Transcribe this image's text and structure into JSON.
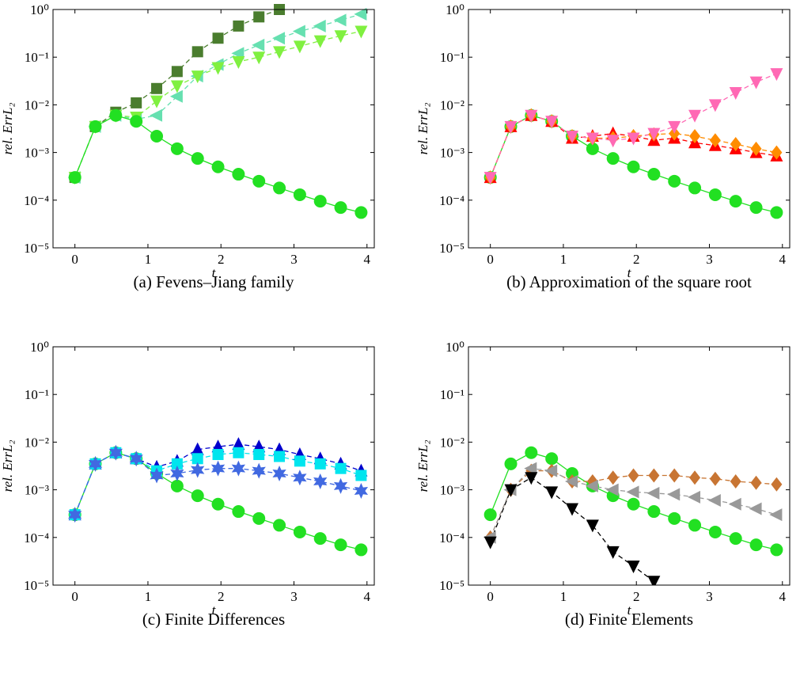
{
  "chart_data": [
    {
      "type": "line",
      "caption": "(a) Fevens–Jiang family",
      "xlabel": "t",
      "ylabel": "rel. ErrL₂",
      "log_y": true,
      "xlim": [
        -0.3,
        4.1
      ],
      "ylim": [
        1e-05,
        1
      ],
      "xticks": [
        0,
        1,
        2,
        3,
        4
      ],
      "yticks": [
        {
          "value": 1e-05,
          "label": "10⁻⁵"
        },
        {
          "value": 0.0001,
          "label": "10⁻⁴"
        },
        {
          "value": 0.001,
          "label": "10⁻³"
        },
        {
          "value": 0.01,
          "label": "10⁻²"
        },
        {
          "value": 0.1,
          "label": "10⁻¹"
        },
        {
          "value": 1,
          "label": "10⁰"
        }
      ],
      "x": [
        0,
        0.28,
        0.56,
        0.84,
        1.12,
        1.4,
        1.68,
        1.96,
        2.24,
        2.52,
        2.8,
        3.08,
        3.36,
        3.64,
        3.92
      ],
      "series": [
        {
          "color": "#4a7d2e",
          "marker": "square",
          "linestyle": "dashed",
          "values": [
            0.0003,
            0.0035,
            0.007,
            0.011,
            0.022,
            0.05,
            0.13,
            0.25,
            0.45,
            0.7,
            1.0,
            null,
            null,
            null,
            null
          ]
        },
        {
          "color": "#66e0b0",
          "marker": "left",
          "linestyle": "dashed",
          "values": [
            0.0003,
            0.0035,
            0.006,
            0.005,
            0.006,
            0.015,
            0.04,
            0.07,
            0.12,
            0.18,
            0.25,
            0.35,
            0.45,
            0.6,
            0.8
          ]
        },
        {
          "color": "#80f040",
          "marker": "down",
          "linestyle": "dashed",
          "values": [
            0.0003,
            0.0035,
            0.006,
            0.0055,
            0.012,
            0.025,
            0.04,
            0.06,
            0.08,
            0.1,
            0.13,
            0.17,
            0.22,
            0.28,
            0.35
          ]
        },
        {
          "color": "#22e022",
          "marker": "circle",
          "linestyle": "solid",
          "values": [
            0.0003,
            0.0035,
            0.006,
            0.0045,
            0.0022,
            0.0012,
            0.00075,
            0.0005,
            0.00035,
            0.00025,
            0.00018,
            0.00013,
            9.5e-05,
            7e-05,
            5.5e-05
          ]
        }
      ]
    },
    {
      "type": "line",
      "caption": "(b) Approximation of the square root",
      "xlabel": "t",
      "ylabel": "rel. ErrL₂",
      "log_y": true,
      "xlim": [
        -0.3,
        4.1
      ],
      "ylim": [
        1e-05,
        1
      ],
      "xticks": [
        0,
        1,
        2,
        3,
        4
      ],
      "yticks": [
        {
          "value": 1e-05,
          "label": "10⁻⁵"
        },
        {
          "value": 0.0001,
          "label": "10⁻⁴"
        },
        {
          "value": 0.001,
          "label": "10⁻³"
        },
        {
          "value": 0.01,
          "label": "10⁻²"
        },
        {
          "value": 0.1,
          "label": "10⁻¹"
        },
        {
          "value": 1,
          "label": "10⁰"
        }
      ],
      "x": [
        0,
        0.28,
        0.56,
        0.84,
        1.12,
        1.4,
        1.68,
        1.96,
        2.24,
        2.52,
        2.8,
        3.08,
        3.36,
        3.64,
        3.92
      ],
      "series": [
        {
          "color": "#22e022",
          "marker": "circle",
          "linestyle": "solid",
          "values": [
            0.0003,
            0.0035,
            0.006,
            0.0045,
            0.0022,
            0.0012,
            0.00075,
            0.0005,
            0.00035,
            0.00025,
            0.00018,
            0.00013,
            9.5e-05,
            7e-05,
            5.5e-05
          ]
        },
        {
          "color": "#ff0000",
          "marker": "up",
          "linestyle": "dashed",
          "values": [
            0.0003,
            0.0035,
            0.006,
            0.0045,
            0.002,
            0.0022,
            0.0025,
            0.0022,
            0.0018,
            0.002,
            0.0016,
            0.0014,
            0.0012,
            0.001,
            0.00085
          ]
        },
        {
          "color": "#ff8c00",
          "marker": "diamond",
          "linestyle": "dashed",
          "values": [
            0.0003,
            0.0035,
            0.006,
            0.0045,
            0.0022,
            0.002,
            0.002,
            0.0022,
            0.0024,
            0.0025,
            0.0022,
            0.0018,
            0.0015,
            0.0012,
            0.001
          ]
        },
        {
          "color": "#ff69b4",
          "marker": "down",
          "linestyle": "dashed",
          "values": [
            0.0003,
            0.0035,
            0.006,
            0.0045,
            0.0022,
            0.002,
            0.0018,
            0.002,
            0.0025,
            0.0035,
            0.006,
            0.01,
            0.018,
            0.03,
            0.045
          ]
        }
      ]
    },
    {
      "type": "line",
      "caption": "(c) Finite Differences",
      "xlabel": "t",
      "ylabel": "rel. ErrL₂",
      "log_y": true,
      "xlim": [
        -0.3,
        4.1
      ],
      "ylim": [
        1e-05,
        1
      ],
      "xticks": [
        0,
        1,
        2,
        3,
        4
      ],
      "yticks": [
        {
          "value": 1e-05,
          "label": "10⁻⁵"
        },
        {
          "value": 0.0001,
          "label": "10⁻⁴"
        },
        {
          "value": 0.001,
          "label": "10⁻³"
        },
        {
          "value": 0.01,
          "label": "10⁻²"
        },
        {
          "value": 0.1,
          "label": "10⁻¹"
        },
        {
          "value": 1,
          "label": "10⁰"
        }
      ],
      "x": [
        0,
        0.28,
        0.56,
        0.84,
        1.12,
        1.4,
        1.68,
        1.96,
        2.24,
        2.52,
        2.8,
        3.08,
        3.36,
        3.64,
        3.92
      ],
      "series": [
        {
          "color": "#22e022",
          "marker": "circle",
          "linestyle": "solid",
          "values": [
            0.0003,
            0.0035,
            0.006,
            0.0045,
            0.0022,
            0.0012,
            0.00075,
            0.0005,
            0.00035,
            0.00025,
            0.00018,
            0.00013,
            9.5e-05,
            7e-05,
            5.5e-05
          ]
        },
        {
          "color": "#0000cd",
          "marker": "up",
          "linestyle": "dashed",
          "values": [
            0.0003,
            0.0035,
            0.006,
            0.0045,
            0.003,
            0.004,
            0.007,
            0.008,
            0.009,
            0.008,
            0.007,
            0.0055,
            0.0045,
            0.0035,
            0.0025
          ]
        },
        {
          "color": "#00e5ee",
          "marker": "square",
          "linestyle": "dashed",
          "values": [
            0.0003,
            0.0035,
            0.006,
            0.0045,
            0.0025,
            0.0035,
            0.0045,
            0.0055,
            0.006,
            0.0055,
            0.005,
            0.004,
            0.0035,
            0.0028,
            0.002
          ]
        },
        {
          "color": "#4169e1",
          "marker": "star",
          "linestyle": "dashed",
          "values": [
            0.0003,
            0.0035,
            0.006,
            0.0045,
            0.002,
            0.0022,
            0.0026,
            0.0028,
            0.0028,
            0.0025,
            0.0022,
            0.0018,
            0.0015,
            0.0012,
            0.00095
          ]
        }
      ]
    },
    {
      "type": "line",
      "caption": "(d) Finite Elements",
      "xlabel": "t",
      "ylabel": "rel. ErrL₂",
      "log_y": true,
      "xlim": [
        -0.3,
        4.1
      ],
      "ylim": [
        1e-05,
        1
      ],
      "xticks": [
        0,
        1,
        2,
        3,
        4
      ],
      "yticks": [
        {
          "value": 1e-05,
          "label": "10⁻⁵"
        },
        {
          "value": 0.0001,
          "label": "10⁻⁴"
        },
        {
          "value": 0.001,
          "label": "10⁻³"
        },
        {
          "value": 0.01,
          "label": "10⁻²"
        },
        {
          "value": 0.1,
          "label": "10⁻¹"
        },
        {
          "value": 1,
          "label": "10⁰"
        }
      ],
      "x": [
        0,
        0.28,
        0.56,
        0.84,
        1.12,
        1.4,
        1.68,
        1.96,
        2.24,
        2.52,
        2.8,
        3.08,
        3.36,
        3.64,
        3.92
      ],
      "series": [
        {
          "color": "#22e022",
          "marker": "circle",
          "linestyle": "solid",
          "values": [
            0.0003,
            0.0035,
            0.006,
            0.0045,
            0.0022,
            0.0012,
            0.00075,
            0.0005,
            0.00035,
            0.00025,
            0.00018,
            0.00013,
            9.5e-05,
            7e-05,
            5.5e-05
          ]
        },
        {
          "color": "#c87533",
          "marker": "diamond",
          "linestyle": "dashed",
          "values": [
            0.0001,
            0.001,
            0.0025,
            0.0025,
            0.0015,
            0.0015,
            0.0018,
            0.002,
            0.002,
            0.002,
            0.0018,
            0.0017,
            0.0015,
            0.0014,
            0.0013
          ]
        },
        {
          "color": "#999999",
          "marker": "left",
          "linestyle": "dashed",
          "values": [
            0.0001,
            0.001,
            0.0028,
            0.0025,
            0.0015,
            0.0012,
            0.001,
            0.0009,
            0.00085,
            0.0008,
            0.0007,
            0.0006,
            0.0005,
            0.0004,
            0.0003
          ]
        },
        {
          "color": "#000000",
          "marker": "down",
          "linestyle": "dashed",
          "values": [
            8e-05,
            0.001,
            0.0018,
            0.0009,
            0.0004,
            0.00018,
            5e-05,
            2.5e-05,
            1.2e-05,
            null,
            null,
            null,
            null,
            null,
            null
          ]
        }
      ]
    }
  ]
}
